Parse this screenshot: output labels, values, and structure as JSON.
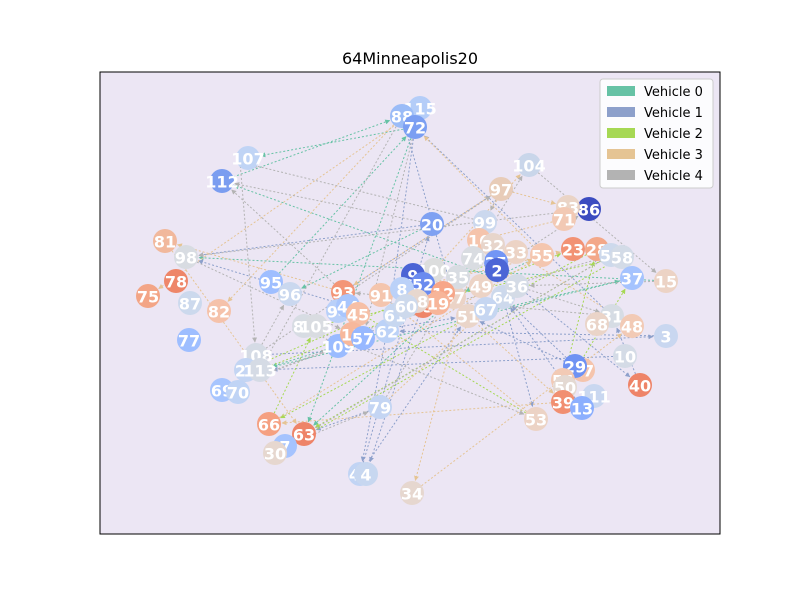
{
  "chart_data": {
    "type": "network",
    "title": "64Minneapolis20",
    "background": "#ece6f4",
    "legend_position": "top-right",
    "vehicles": [
      {
        "name": "Vehicle 0",
        "color": "#66c2a5"
      },
      {
        "name": "Vehicle 1",
        "color": "#8da0cb"
      },
      {
        "name": "Vehicle 2",
        "color": "#a6d854"
      },
      {
        "name": "Vehicle 3",
        "color": "#e5c494"
      },
      {
        "name": "Vehicle 4",
        "color": "#b3b3b3"
      }
    ],
    "nodes": [
      {
        "id": "115",
        "color": "#b4cdf8"
      },
      {
        "id": "88",
        "color": "#9bbcf7"
      },
      {
        "id": "72",
        "color": "#7b9ff2"
      },
      {
        "id": "104",
        "color": "#c9d6ea"
      },
      {
        "id": "107",
        "color": "#c0d4f5"
      },
      {
        "id": "112",
        "color": "#7a9df0"
      },
      {
        "id": "97",
        "color": "#e8ccb8"
      },
      {
        "id": "86",
        "color": "#3b4cc0"
      },
      {
        "id": "83",
        "color": "#ead4c6"
      },
      {
        "id": "71",
        "color": "#f2c9b4"
      },
      {
        "id": "20",
        "color": "#7fa1f2"
      },
      {
        "id": "99",
        "color": "#cbd8ee"
      },
      {
        "id": "81",
        "color": "#f1b89c"
      },
      {
        "id": "16",
        "color": "#f5c4ac"
      },
      {
        "id": "32",
        "color": "#e7d5cb"
      },
      {
        "id": "33",
        "color": "#ecd3c5"
      },
      {
        "id": "55",
        "color": "#f4c6af"
      },
      {
        "id": "23",
        "color": "#f29274"
      },
      {
        "id": "28",
        "color": "#f3a889"
      },
      {
        "id": "56",
        "color": "#cdd9ec"
      },
      {
        "id": "58",
        "color": "#d3dbe7"
      },
      {
        "id": "98",
        "color": "#d8dce2"
      },
      {
        "id": "37",
        "color": "#a5c3fe"
      },
      {
        "id": "15",
        "color": "#ecd3c5"
      },
      {
        "id": "78",
        "color": "#ee8669"
      },
      {
        "id": "95",
        "color": "#9ebeff"
      },
      {
        "id": "96",
        "color": "#cad8ef"
      },
      {
        "id": "75",
        "color": "#f3a586"
      },
      {
        "id": "87",
        "color": "#ccd9ed"
      },
      {
        "id": "82",
        "color": "#f5c2aa"
      },
      {
        "id": "93",
        "color": "#f39577"
      },
      {
        "id": "91",
        "color": "#f4c5ad"
      },
      {
        "id": "100",
        "color": "#dcdddd"
      },
      {
        "id": "47",
        "color": "#ebd3c6"
      },
      {
        "id": "49",
        "color": "#ecd3c5"
      },
      {
        "id": "64",
        "color": "#cdd9ec"
      },
      {
        "id": "36",
        "color": "#d4dbe6"
      },
      {
        "id": "25",
        "color": "#7396f5"
      },
      {
        "id": "74",
        "color": "#d9dce1"
      },
      {
        "id": "51",
        "color": "#ead5c9"
      },
      {
        "id": "67",
        "color": "#c6d6f1"
      },
      {
        "id": "31",
        "color": "#d6dce4"
      },
      {
        "id": "68",
        "color": "#ead4c8"
      },
      {
        "id": "48",
        "color": "#f2cab5"
      },
      {
        "id": "3",
        "color": "#c9d7f0"
      },
      {
        "id": "77",
        "color": "#9ebeff"
      },
      {
        "id": "80",
        "color": "#d7dce3"
      },
      {
        "id": "105",
        "color": "#d9dce1"
      },
      {
        "id": "109",
        "color": "#9abbff"
      },
      {
        "id": "62",
        "color": "#bcd2f7"
      },
      {
        "id": "94",
        "color": "#b9d0f9"
      },
      {
        "id": "44",
        "color": "#a9c6fd"
      },
      {
        "id": "45",
        "color": "#f6bfa6"
      },
      {
        "id": "11",
        "color": "#f7b89c"
      },
      {
        "id": "57",
        "color": "#97b8ff"
      },
      {
        "id": "10",
        "color": "#d4dbe6"
      },
      {
        "id": "108",
        "color": "#d5dbe5"
      },
      {
        "id": "21",
        "color": "#c4d5f3"
      },
      {
        "id": "113",
        "color": "#d5dbe5"
      },
      {
        "id": "69",
        "color": "#a7c5fe"
      },
      {
        "id": "70",
        "color": "#c0d4f5"
      },
      {
        "id": "27",
        "color": "#f5c4ac"
      },
      {
        "id": "29",
        "color": "#6f92f3"
      },
      {
        "id": "54",
        "color": "#f2cab5"
      },
      {
        "id": "50",
        "color": "#e4d9d2"
      },
      {
        "id": "111",
        "color": "#c9d7f0"
      },
      {
        "id": "40",
        "color": "#ee8468"
      },
      {
        "id": "39",
        "color": "#f18f71"
      },
      {
        "id": "13",
        "color": "#8caffe"
      },
      {
        "id": "79",
        "color": "#c4d5f3"
      },
      {
        "id": "53",
        "color": "#ecd3c5"
      },
      {
        "id": "66",
        "color": "#f5a081"
      },
      {
        "id": "63",
        "color": "#ee8468"
      },
      {
        "id": "7",
        "color": "#a5c3fe"
      },
      {
        "id": "30",
        "color": "#e6d7cf"
      },
      {
        "id": "46",
        "color": "#c1d4f4"
      },
      {
        "id": "4",
        "color": "#c7d7f0"
      },
      {
        "id": "34",
        "color": "#e6d7cf"
      },
      {
        "id": "9",
        "color": "#4b64d5"
      },
      {
        "id": "2",
        "color": "#4c66d6"
      },
      {
        "id": "35",
        "color": "#d8dce2"
      },
      {
        "id": "52",
        "color": "#6a8bef"
      },
      {
        "id": "8",
        "color": "#bbd1f8"
      },
      {
        "id": "43",
        "color": "#ee8669"
      },
      {
        "id": "61",
        "color": "#c7d7f0"
      },
      {
        "id": "12",
        "color": "#f7a688"
      },
      {
        "id": "19",
        "color": "#f7b599"
      },
      {
        "id": "18",
        "color": "#e7d7ce"
      },
      {
        "id": "60",
        "color": "#cdd9ec"
      }
    ]
  }
}
